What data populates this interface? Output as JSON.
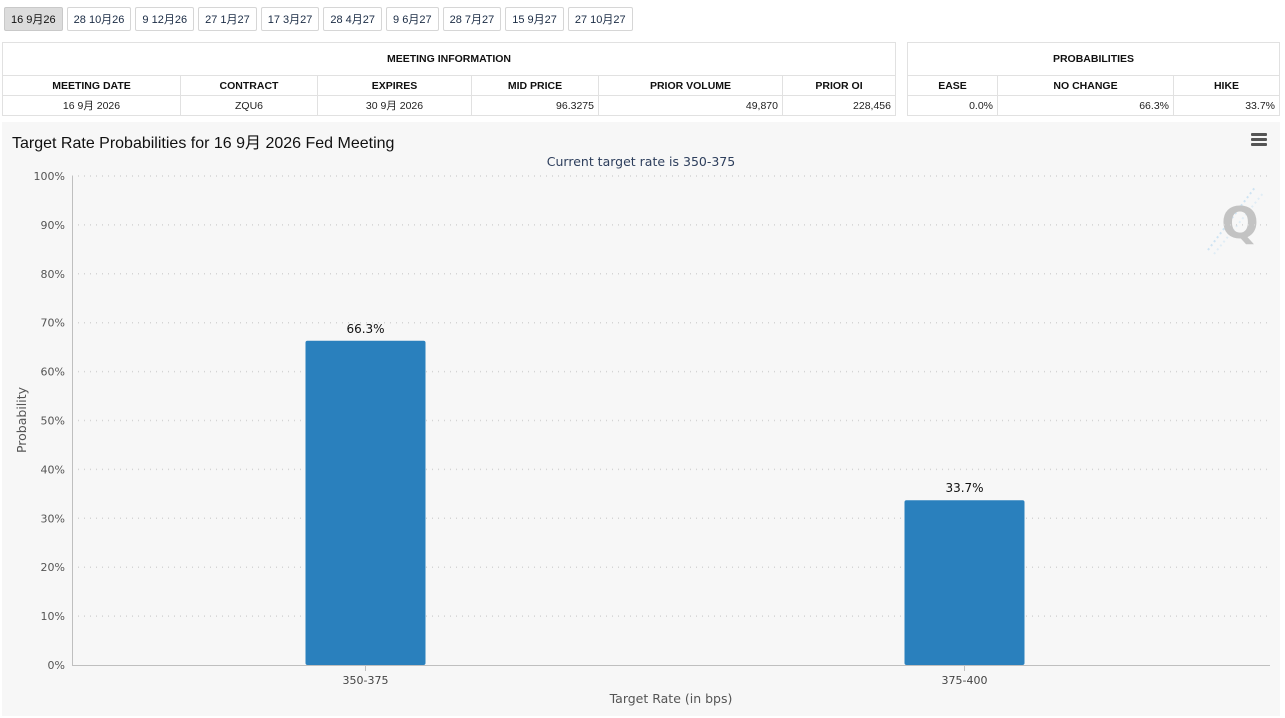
{
  "tabs": [
    {
      "label": "16 9月26",
      "active": true
    },
    {
      "label": "28 10月26",
      "active": false
    },
    {
      "label": "9 12月26",
      "active": false
    },
    {
      "label": "27 1月27",
      "active": false
    },
    {
      "label": "17 3月27",
      "active": false
    },
    {
      "label": "28 4月27",
      "active": false
    },
    {
      "label": "9 6月27",
      "active": false
    },
    {
      "label": "28 7月27",
      "active": false
    },
    {
      "label": "15 9月27",
      "active": false
    },
    {
      "label": "27 10月27",
      "active": false
    }
  ],
  "meeting_info": {
    "group_title": "MEETING INFORMATION",
    "headers": [
      "MEETING DATE",
      "CONTRACT",
      "EXPIRES",
      "MID PRICE",
      "PRIOR VOLUME",
      "PRIOR OI"
    ],
    "row": [
      "16 9月 2026",
      "ZQU6",
      "30 9月 2026",
      "96.3275",
      "49,870",
      "228,456"
    ]
  },
  "probabilities": {
    "group_title": "PROBABILITIES",
    "headers": [
      "EASE",
      "NO CHANGE",
      "HIKE"
    ],
    "row": [
      "0.0%",
      "66.3%",
      "33.7%"
    ]
  },
  "chart": {
    "title": "Target Rate Probabilities for 16 9月 2026 Fed Meeting",
    "watermark_icon": "q-logo-icon",
    "menu_icon": "hamburger-menu-icon",
    "bar_color": "#2a80bd"
  },
  "chart_data": {
    "type": "bar",
    "title": "Target Rate Probabilities for 16 9月 2026 Fed Meeting",
    "subtitle": "Current target rate is 350-375",
    "xlabel": "Target Rate (in bps)",
    "ylabel": "Probability",
    "categories": [
      "350-375",
      "375-400"
    ],
    "values": [
      66.3,
      33.7
    ],
    "data_labels": [
      "66.3%",
      "33.7%"
    ],
    "ylim": [
      0,
      100
    ],
    "yticks": [
      "0%",
      "10%",
      "20%",
      "30%",
      "40%",
      "50%",
      "60%",
      "70%",
      "80%",
      "90%",
      "100%"
    ],
    "grid": true,
    "legend": "none"
  }
}
